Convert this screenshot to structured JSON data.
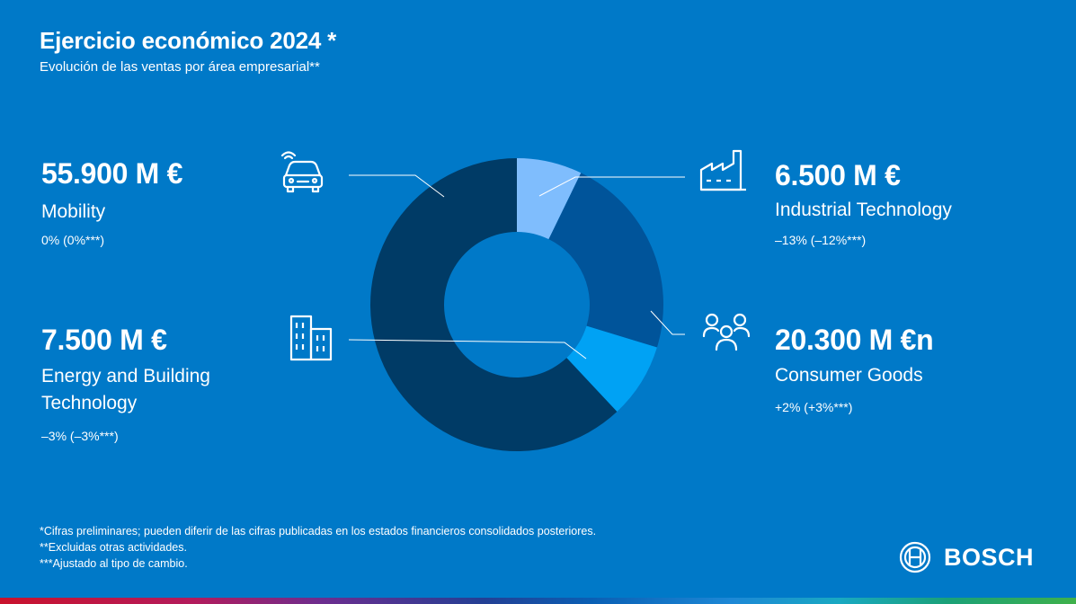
{
  "header": {
    "title": "Ejercicio económico 2024 *",
    "subtitle": "Evolución de las ventas por área empresarial**"
  },
  "segments": {
    "mobility": {
      "amount": "55.900 M €",
      "name": "Mobility",
      "change": "0% (0%***)",
      "icon": "connected-car-icon"
    },
    "energy": {
      "amount": "7.500 M €",
      "name_line1": "Energy and Building",
      "name_line2": "Technology",
      "change": "–3% (–3%***)",
      "icon": "building-icon"
    },
    "industrial": {
      "amount": "6.500 M €",
      "name": "Industrial Technology",
      "change": "–13% (–12%***)",
      "icon": "factory-icon"
    },
    "consumer": {
      "amount": "20.300 M €n",
      "name": "Consumer Goods",
      "change": "+2% (+3%***)",
      "icon": "people-group-icon"
    }
  },
  "chart_data": {
    "type": "pie",
    "donut": true,
    "unit": "M €",
    "categories": [
      "Industrial Technology",
      "Consumer Goods",
      "Energy and Building Technology",
      "Mobility"
    ],
    "values": [
      6500,
      20300,
      7500,
      55900
    ],
    "colors": [
      "#7fbdfd",
      "#00549a",
      "#00a2f4",
      "#003b66"
    ],
    "start": "top",
    "direction": "clockwise"
  },
  "footnotes": [
    "*Cifras preliminares; pueden diferir de las cifras publicadas en los estados financieros consolidados posteriores.",
    "**Excluidas otras actividades.",
    "***Ajustado al tipo de cambio."
  ],
  "brand": {
    "logo_text": "BOSCH",
    "background": "#0079c8"
  }
}
